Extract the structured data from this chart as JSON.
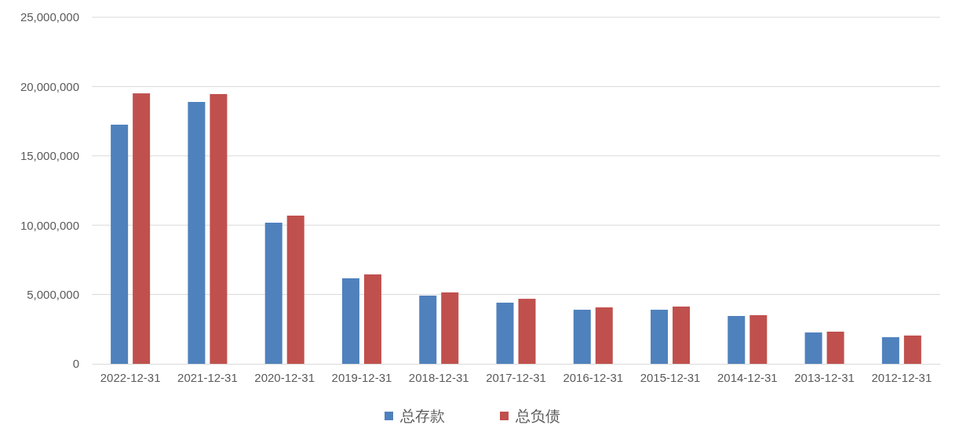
{
  "chart_data": {
    "type": "bar",
    "categories": [
      "2022-12-31",
      "2021-12-31",
      "2020-12-31",
      "2019-12-31",
      "2018-12-31",
      "2017-12-31",
      "2016-12-31",
      "2015-12-31",
      "2014-12-31",
      "2013-12-31",
      "2012-12-31"
    ],
    "series": [
      {
        "name": "总存款",
        "color": "#4f81bd",
        "values": [
          17250000,
          18890000,
          10180000,
          6170000,
          4920000,
          4410000,
          3900000,
          3900000,
          3450000,
          2260000,
          1920000
        ]
      },
      {
        "name": "总负债",
        "color": "#c0504d",
        "values": [
          19510000,
          19460000,
          10690000,
          6450000,
          5150000,
          4690000,
          4070000,
          4130000,
          3510000,
          2320000,
          2040000
        ]
      }
    ],
    "ylim": [
      0,
      25000000
    ],
    "yticks": [
      {
        "value": 0,
        "label": "0"
      },
      {
        "value": 5000000,
        "label": "5,000,000"
      },
      {
        "value": 10000000,
        "label": "10,000,000"
      },
      {
        "value": 15000000,
        "label": "15,000,000"
      },
      {
        "value": 20000000,
        "label": "20,000,000"
      },
      {
        "value": 25000000,
        "label": "25,000,000"
      }
    ],
    "grid": "y",
    "legend": "bottom"
  }
}
